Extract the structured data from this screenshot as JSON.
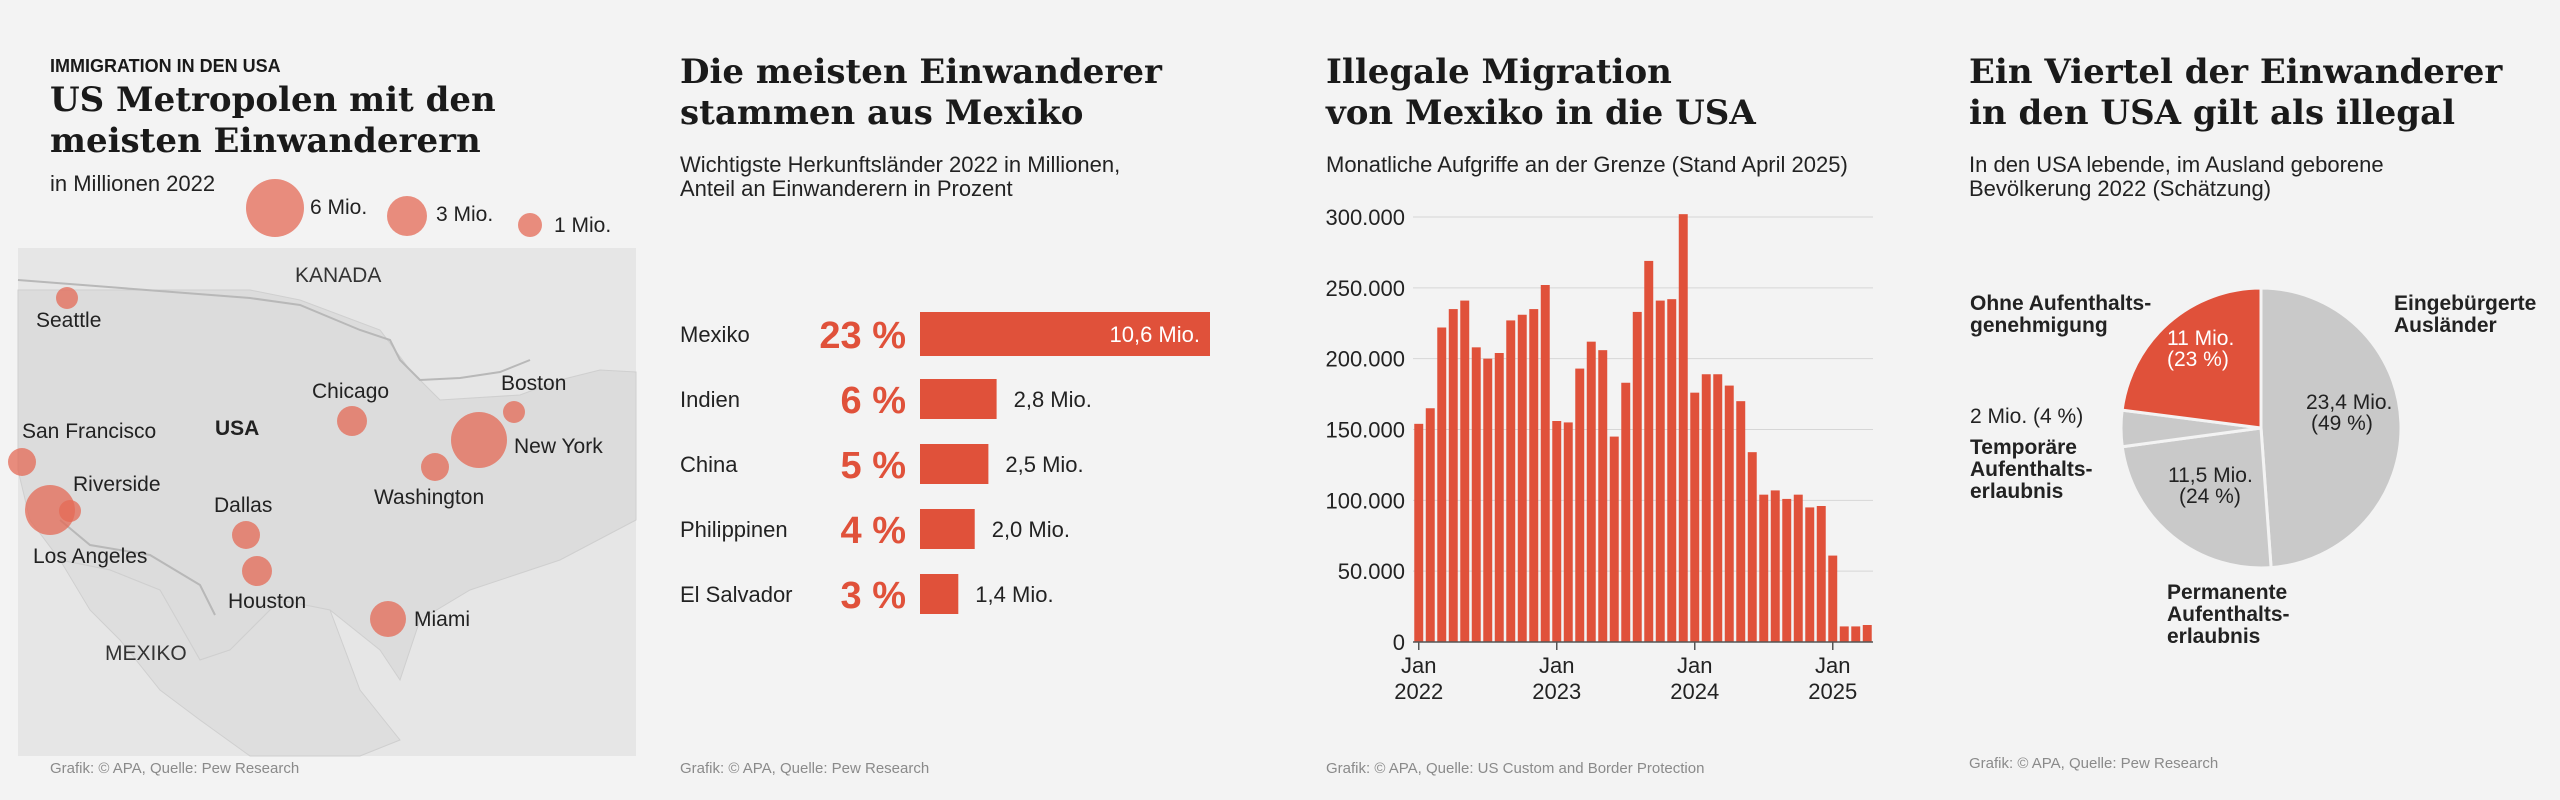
{
  "panel1": {
    "kicker": "IMMIGRATION IN DEN USA",
    "title_l1": "US Metropolen mit den",
    "title_l2": "meisten Einwanderern",
    "subtitle": "in Millionen 2022",
    "legend": [
      "6 Mio.",
      "3 Mio.",
      "1 Mio."
    ],
    "regions": {
      "canada": "KANADA",
      "usa": "USA",
      "mexico": "MEXIKO"
    },
    "cities": [
      "Seattle",
      "San Francisco",
      "Riverside",
      "Los Angeles",
      "Dallas",
      "Houston",
      "Chicago",
      "Boston",
      "New York",
      "Washington",
      "Miami"
    ],
    "credit": "Grafik: © APA, Quelle: Pew Research"
  },
  "panel2": {
    "title_l1": "Die meisten Einwanderer",
    "title_l2": "stammen aus Mexiko",
    "sub_l1": "Wichtigste Herkunftsländer 2022 in Millionen,",
    "sub_l2": "Anteil an Einwanderern in Prozent",
    "credit": "Grafik: © APA, Quelle: Pew Research"
  },
  "panel3": {
    "title_l1": "Illegale Migration",
    "title_l2": "von Mexiko in die USA",
    "subtitle": "Monatliche Aufgriffe an der Grenze (Stand April 2025)",
    "credit": "Grafik: © APA, Quelle: US Custom and Border Protection"
  },
  "panel4": {
    "title_l1": "Ein Viertel der Einwanderer",
    "title_l2": "in den USA gilt als illegal",
    "sub_l1": "In den USA lebende, im Ausland geborene",
    "sub_l2": "Bevölkerung 2022 (Schätzung)",
    "credit": "Grafik: © APA, Quelle: Pew Research"
  },
  "colors": {
    "accent": "#e0513a",
    "bubble": "#e46a55",
    "grey": "#c9c9c9"
  },
  "chart_data": [
    {
      "type": "bar",
      "orientation": "horizontal",
      "categories": [
        "Mexiko",
        "Indien",
        "China",
        "Philippinen",
        "El Salvador"
      ],
      "values": [
        10.6,
        2.8,
        2.5,
        2.0,
        1.4
      ],
      "value_labels": [
        "10,6 Mio.",
        "2,8 Mio.",
        "2,5 Mio.",
        "2,0 Mio.",
        "1,4 Mio."
      ],
      "shares": [
        "23 %",
        "6 %",
        "5 %",
        "4 %",
        "3 %"
      ]
    },
    {
      "type": "bar",
      "ylim": [
        0,
        300000
      ],
      "yticks": [
        0,
        50000,
        100000,
        150000,
        200000,
        250000,
        300000
      ],
      "ytick_labels": [
        "0",
        "50.000",
        "100.000",
        "150.000",
        "200.000",
        "250.000",
        "300.000"
      ],
      "xtick_labels": [
        [
          "Jan",
          "2022"
        ],
        [
          "Jan",
          "2023"
        ],
        [
          "Jan",
          "2024"
        ],
        [
          "Jan",
          "2025"
        ]
      ],
      "start": "2022-01",
      "end": "2025-04",
      "values": [
        154000,
        165000,
        222000,
        235000,
        241000,
        208000,
        200000,
        204000,
        227000,
        231000,
        235000,
        252000,
        156000,
        155000,
        193000,
        212000,
        206000,
        145000,
        183000,
        233000,
        269000,
        241000,
        242000,
        302000,
        176000,
        189000,
        189000,
        181000,
        170000,
        134000,
        104000,
        107000,
        101000,
        104000,
        95000,
        96000,
        61000,
        11000,
        11000,
        12000
      ]
    },
    {
      "type": "pie",
      "slices": [
        {
          "name": "Eingebürgerte Ausländer",
          "name_l1": "Eingebürgerte",
          "name_l2": "Ausländer",
          "value": 23.4,
          "label_l1": "23,4 Mio.",
          "label_l2": "(49 %)",
          "color": "#c9c9c9"
        },
        {
          "name": "Permanente Aufenthaltserlaubnis",
          "name_l1": "Permanente",
          "name_l2": "Aufenthalts-",
          "name_l3": "erlaubnis",
          "value": 11.5,
          "label_l1": "11,5 Mio.",
          "label_l2": "(24 %)",
          "color": "#c9c9c9"
        },
        {
          "name": "Temporäre Aufenthaltserlaubnis",
          "name_l1": "Temporäre",
          "name_l2": "Aufenthalts-",
          "name_l3": "erlaubnis",
          "value": 2.0,
          "label_l1": "2 Mio. (4 %)",
          "color": "#c9c9c9"
        },
        {
          "name": "Ohne Aufenthaltsgenehmigung",
          "name_l1": "Ohne Aufenthalts-",
          "name_l2": "genehmigung",
          "value": 11.0,
          "label_l1": "11 Mio.",
          "label_l2": "(23 %)",
          "color": "#e0513a"
        }
      ]
    }
  ]
}
